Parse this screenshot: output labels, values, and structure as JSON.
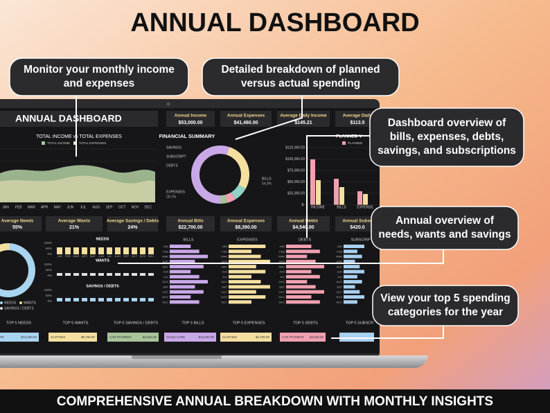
{
  "header": {
    "title": "ANNUAL DASHBOARD"
  },
  "footer": {
    "text": "COMPREHENSIVE ANNUAL BREAKDOWN WITH MONTHLY INSIGHTS"
  },
  "callouts": [
    {
      "lines": [
        "Monitor your monthly income",
        "and expenses"
      ]
    },
    {
      "lines": [
        "Detailed breakdown of planned",
        "versus actual spending"
      ]
    },
    {
      "lines": [
        "Dashboard overview of",
        "bills, expenses, debts,",
        "savings, and subscriptions"
      ]
    },
    {
      "lines": [
        "Annual overview of",
        "needs, wants and savings"
      ]
    },
    {
      "lines": [
        "View your top 5 spending",
        "categories for the year"
      ]
    }
  ],
  "dashboard": {
    "title": "ANNUAL DASHBOARD",
    "kpis_top": [
      {
        "label": "Annual Income",
        "value": "$53,000.00"
      },
      {
        "label": "Annual Expenses",
        "value": "$41,460.00"
      },
      {
        "label": "Average Daily Income",
        "value": "$145.21"
      },
      {
        "label": "Average Daily",
        "value": "$113.5"
      }
    ],
    "kpis_mid": [
      {
        "label": "Average Needs",
        "value": "55%"
      },
      {
        "label": "Average Wants",
        "value": "21%"
      },
      {
        "label": "Average Savings / Debts",
        "value": "24%"
      },
      {
        "label": "Annual Bills",
        "value": "$22,700.00"
      },
      {
        "label": "Annual Expenses",
        "value": "$8,390.00"
      },
      {
        "label": "Annual Debts",
        "value": "$4,540.00"
      },
      {
        "label": "Annual Subsc",
        "value": "$420.0"
      }
    ],
    "income_chart": {
      "title": "TOTAL INCOME vs TOTAL EXPENSES",
      "legend": [
        "TOTAL INCOME",
        "TOTAL EXPENSES"
      ],
      "months": [
        "JAN",
        "FEB",
        "MAR",
        "APR",
        "MAY",
        "JUN",
        "JUL",
        "AUG",
        "SEP",
        "OCT",
        "NOV",
        "DEC"
      ]
    },
    "summary": {
      "title": "FINANCIAL SUMMARY",
      "labels": [
        "SAVINGS",
        "SUBSCRIPT",
        "DEBTS",
        "EXPENSES",
        "BILLS"
      ],
      "percents": [
        "28.2%",
        "54.8%"
      ]
    },
    "planned": {
      "title": "PLANNED V",
      "legend": "PLANNED",
      "yticks": [
        "$125,000.00",
        "$100,000.00",
        "$75,000.00",
        "$50,000.00",
        "$25,000.00",
        "$-"
      ],
      "categories": [
        "INCOME",
        "BILLS",
        "EXPENSE"
      ]
    },
    "allocation": {
      "titles": [
        "NEEDS",
        "WANTS",
        "SAVINGS / DEBTS"
      ],
      "ticks": [
        "100%",
        "50%",
        "0%"
      ],
      "legend": [
        "NEEDS",
        "WANTS",
        "SAVINGS / DEBTS"
      ]
    },
    "category_charts": [
      "BILLS",
      "EXPENSES",
      "DEBTS",
      "SUBSCRIPTI"
    ],
    "top5": [
      {
        "title": "TOP 5 NEEDS",
        "item": "CARE",
        "amount": "$13,200.00"
      },
      {
        "title": "TOP 5 WANTS",
        "item": "CLOTHES",
        "amount": "$6,700.00"
      },
      {
        "title": "TOP 5 SAVINGS / DEBTS",
        "item": "CAR PAYMENT",
        "amount": "$4,540.00"
      },
      {
        "title": "TOP 5 BILLS",
        "item": "CHILD CARE",
        "amount": "$13,200.00"
      },
      {
        "title": "TOP 5 EXPENSES",
        "item": "CLOTHES",
        "amount": "$4,700.00"
      },
      {
        "title": "TOP 5 DEBTS",
        "item": "CAR PAYMENT",
        "amount": "$4,540.00"
      },
      {
        "title": "TOP 5 SUBSCR"
      }
    ]
  }
}
